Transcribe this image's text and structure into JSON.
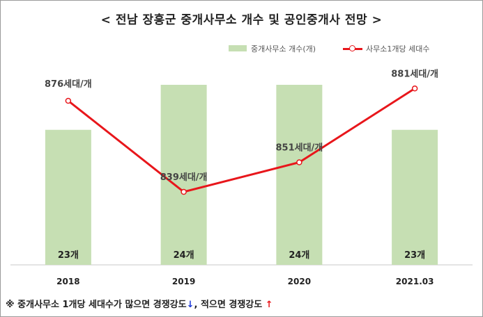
{
  "title": "< 전남 장흥군 중개사무소 개수 및 공인중개사 전망 >",
  "legend": {
    "bar_label": "중개사무소 개수(개)",
    "line_label": "사무소1개당 세대수"
  },
  "colors": {
    "bar": "#c6dfb3",
    "line": "#e8161b",
    "down_arrow": "#1a37d8",
    "up_arrow": "#e8161b"
  },
  "chart_data": {
    "type": "bar",
    "categories": [
      "2018",
      "2019",
      "2020",
      "2021.03"
    ],
    "series": [
      {
        "name": "중개사무소 개수(개)",
        "type": "bar",
        "values": [
          23,
          24,
          24,
          23
        ],
        "labels": [
          "23개",
          "24개",
          "24개",
          "23개"
        ]
      },
      {
        "name": "사무소1개당 세대수",
        "type": "line",
        "values": [
          876,
          839,
          851,
          881
        ],
        "labels": [
          "876세대/개",
          "839세대/개",
          "851세대/개",
          "881세대/개"
        ]
      }
    ]
  },
  "footnote": {
    "part1": "※ 중개사무소 1개당 세대수가 많으면 경쟁강도",
    "down_arrow": "↓",
    "part2": ", 적으면 경쟁강도 ",
    "up_arrow": "↑"
  }
}
